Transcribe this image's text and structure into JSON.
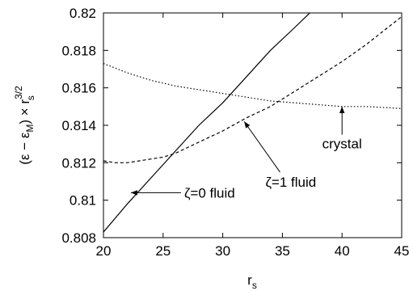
{
  "chart_data": {
    "type": "line",
    "title": "",
    "xlabel": "r",
    "xlabel_sub": "s",
    "ylabel": {
      "prefix": "(ε − ε",
      "sub": "M",
      "middle": ") × r",
      "sup": "3/2",
      "sub2": "s"
    },
    "xlim": [
      20,
      45
    ],
    "ylim": [
      0.808,
      0.82
    ],
    "xticks": [
      "20",
      "25",
      "30",
      "35",
      "40",
      "45"
    ],
    "yticks": [
      "0.808",
      "0.81",
      "0.812",
      "0.814",
      "0.816",
      "0.818",
      "0.82"
    ],
    "grid": false,
    "legend": "none",
    "series": [
      {
        "style": "solid",
        "x": [
          20,
          22,
          24,
          26,
          28,
          30,
          32,
          34,
          36,
          37.3
        ],
        "y": [
          0.8083,
          0.8098,
          0.8112,
          0.8126,
          0.814,
          0.8152,
          0.8166,
          0.818,
          0.8192,
          0.82
        ]
      },
      {
        "style": "dashed",
        "x": [
          20,
          21,
          22,
          23,
          24,
          25,
          26,
          28,
          30,
          32,
          34,
          36,
          38,
          40,
          42,
          44,
          45
        ],
        "y": [
          0.8121,
          0.812,
          0.812,
          0.8121,
          0.8122,
          0.8123,
          0.8125,
          0.8131,
          0.8137,
          0.8144,
          0.815,
          0.8158,
          0.8166,
          0.8174,
          0.8183,
          0.8193,
          0.8198
        ]
      },
      {
        "style": "dotted",
        "x": [
          20,
          22,
          24,
          26,
          28,
          30,
          32,
          34,
          36,
          38,
          40,
          42,
          45
        ],
        "y": [
          0.8173,
          0.8168,
          0.8164,
          0.8161,
          0.8159,
          0.8157,
          0.8155,
          0.8153,
          0.8152,
          0.8151,
          0.815,
          0.815,
          0.8149
        ]
      }
    ],
    "annotations": [
      {
        "text": "ζ=0 fluid",
        "tail": [
          26.5,
          0.8104
        ],
        "head": [
          22.3,
          0.8104
        ]
      },
      {
        "text": "ζ=1 fluid",
        "tail": [
          34.8,
          0.8115
        ],
        "head": [
          31.8,
          0.8142
        ]
      },
      {
        "text": "crystal",
        "tail": [
          40,
          0.8135
        ],
        "head": [
          40,
          0.815
        ]
      }
    ]
  }
}
